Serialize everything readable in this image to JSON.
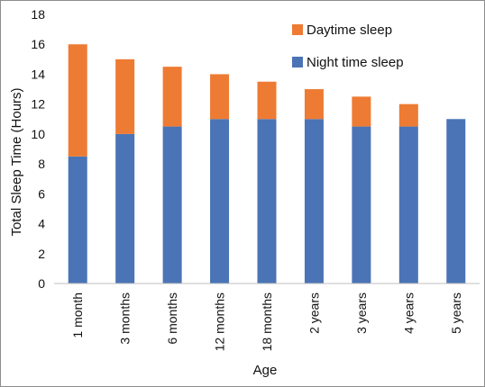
{
  "chart_data": {
    "type": "bar",
    "stacked": true,
    "xlabel": "Age",
    "ylabel": "Total Sleep Time (Hours)",
    "ylim": [
      0,
      18
    ],
    "yticks": [
      "0",
      "2",
      "4",
      "6",
      "8",
      "10",
      "12",
      "14",
      "16",
      "18"
    ],
    "categories": [
      "1 month",
      "3 months",
      "6 months",
      "12 months",
      "18 months",
      "2 years",
      "3 years",
      "4 years",
      "5 years"
    ],
    "series": [
      {
        "name": "Night time sleep",
        "color": "#4a74b5",
        "values": [
          8.5,
          10,
          10.5,
          11,
          11,
          11,
          10.5,
          10.5,
          11
        ]
      },
      {
        "name": "Daytime sleep",
        "color": "#ee7b33",
        "values": [
          7.5,
          5,
          4,
          3,
          2.5,
          2,
          2,
          1.5,
          0
        ]
      }
    ],
    "legend": {
      "position": "top-right",
      "entries": [
        "Daytime sleep",
        "Night time sleep"
      ]
    },
    "grid": false
  }
}
